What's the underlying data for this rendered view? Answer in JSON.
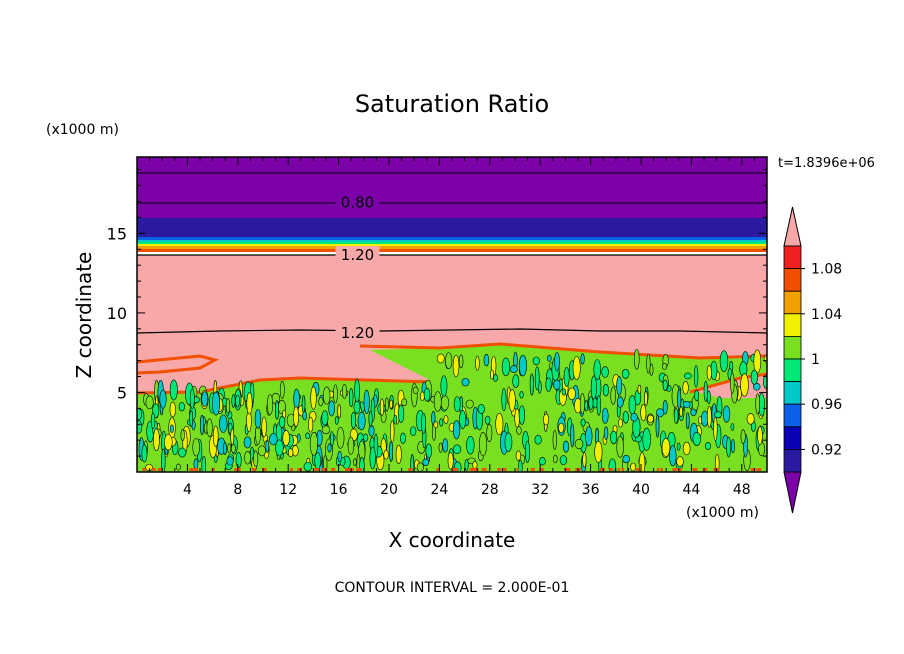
{
  "chart_data": {
    "type": "heatmap",
    "title": "Saturation Ratio",
    "xlabel": "X coordinate",
    "ylabel": "Z coordinate",
    "x_unit": "(x1000 m)",
    "z_unit": "(x1000 m)",
    "time_label": "t=1.8396e+06",
    "footer": "CONTOUR INTERVAL = 2.000E-01",
    "xlim": [
      0,
      50
    ],
    "ylim": [
      0,
      19.8
    ],
    "x_ticks": [
      4,
      8,
      12,
      16,
      20,
      24,
      28,
      32,
      36,
      40,
      44,
      48
    ],
    "y_ticks": [
      5,
      10,
      15
    ],
    "contour_labels": [
      {
        "text": "0.80",
        "x": 17.5,
        "z": 17.0
      },
      {
        "text": "1.20",
        "x": 17.5,
        "z": 13.7
      },
      {
        "text": "1.20",
        "x": 17.5,
        "z": 8.8
      }
    ],
    "colorbar": {
      "colors": [
        "#7c00a8",
        "#2a1aa0",
        "#0a00b4",
        "#0b60e8",
        "#00c8c8",
        "#00e878",
        "#78e020",
        "#f0f000",
        "#f0a000",
        "#f05000",
        "#f02020",
        "#f8a8a8"
      ],
      "tick_labels": [
        "0.92",
        "0.96",
        "1",
        "1.04",
        "1.08"
      ],
      "extend": "both"
    },
    "layers": [
      {
        "name": "upper-dry",
        "z_from": 15.2,
        "z_to": 19.8,
        "color": "#7c00a8"
      },
      {
        "name": "cloud-top",
        "z_from": 8.8,
        "z_to": 14.0,
        "color": "#f8a8a8"
      },
      {
        "name": "turbulent-layer",
        "z_from": 0,
        "z_to": 7.0,
        "color": "#78e020"
      }
    ]
  }
}
